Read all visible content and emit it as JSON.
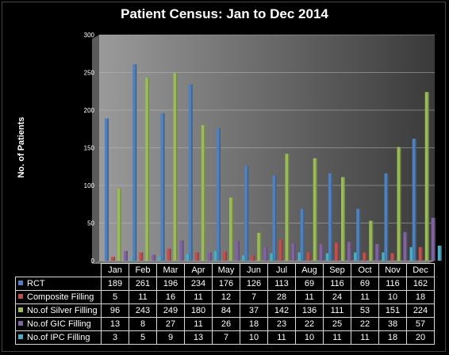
{
  "chart_data": {
    "type": "bar",
    "title": "Patient Census: Jan to Dec 2014",
    "ylabel": "No. of Patients",
    "xlabel": "",
    "ylim": [
      0,
      300
    ],
    "yticks": [
      0,
      50,
      100,
      150,
      200,
      250,
      300
    ],
    "categories": [
      "Jan",
      "Feb",
      "Mar",
      "Apr",
      "May",
      "Jun",
      "Jul",
      "Aug",
      "Sep",
      "Oct",
      "Nov",
      "Dec"
    ],
    "series": [
      {
        "name": "RCT",
        "color": "#4f81bd",
        "values": [
          189,
          261,
          196,
          234,
          176,
          126,
          113,
          69,
          116,
          69,
          116,
          162
        ]
      },
      {
        "name": "Composite Filling",
        "color": "#c0504d",
        "values": [
          5,
          11,
          16,
          11,
          12,
          7,
          28,
          11,
          24,
          11,
          10,
          18
        ]
      },
      {
        "name": "No.of Silver Filling",
        "color": "#9bbb59",
        "values": [
          96,
          243,
          249,
          180,
          84,
          37,
          142,
          136,
          111,
          53,
          151,
          224
        ]
      },
      {
        "name": "No.of GIC Filling",
        "color": "#8064a2",
        "values": [
          13,
          8,
          27,
          11,
          26,
          18,
          23,
          22,
          25,
          22,
          38,
          57
        ]
      },
      {
        "name": "No.of IPC Filling",
        "color": "#4bacc6",
        "values": [
          3,
          5,
          9,
          13,
          7,
          10,
          11,
          10,
          11,
          11,
          18,
          20
        ]
      }
    ],
    "legend": "data-table"
  }
}
